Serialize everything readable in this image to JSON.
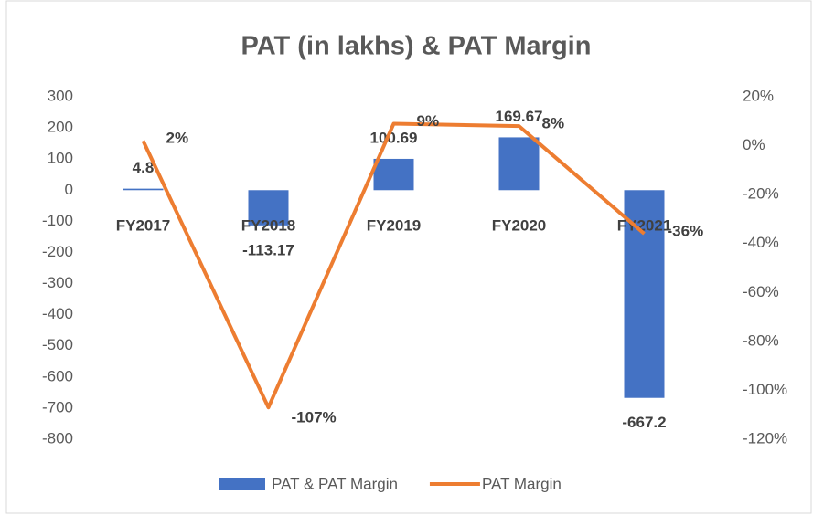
{
  "chart_data": {
    "type": "bar+line",
    "title": "PAT (in lakhs) & PAT Margin",
    "categories": [
      "FY2017",
      "FY2018",
      "FY2019",
      "FY2020",
      "FY2021"
    ],
    "series": [
      {
        "name": "PAT & PAT Margin",
        "type": "bar",
        "color": "#4472c4",
        "values": [
          4.8,
          -113.17,
          100.69,
          169.67,
          -667.2
        ]
      },
      {
        "name": "PAT Margin",
        "type": "line",
        "axis": "y2",
        "color": "#ed7d31",
        "values": [
          2,
          -107,
          9,
          8,
          -36
        ],
        "value_labels": [
          "2%",
          "-107%",
          "9%",
          "8%",
          "-36%"
        ]
      }
    ],
    "ylim": [
      -800,
      300
    ],
    "yticks": [
      -800,
      -700,
      -600,
      -500,
      -400,
      -300,
      -200,
      -100,
      0,
      100,
      200,
      300
    ],
    "y2lim": [
      -120,
      20
    ],
    "y2ticks": [
      {
        "value": -120,
        "label": "-120%"
      },
      {
        "value": -100,
        "label": "-100%"
      },
      {
        "value": -80,
        "label": "-80%"
      },
      {
        "value": -60,
        "label": "-60%"
      },
      {
        "value": -40,
        "label": "-40%"
      },
      {
        "value": -20,
        "label": "-20%"
      },
      {
        "value": 0,
        "label": "0%"
      },
      {
        "value": 20,
        "label": "20%"
      }
    ],
    "legend": "bottom",
    "grid": false
  }
}
